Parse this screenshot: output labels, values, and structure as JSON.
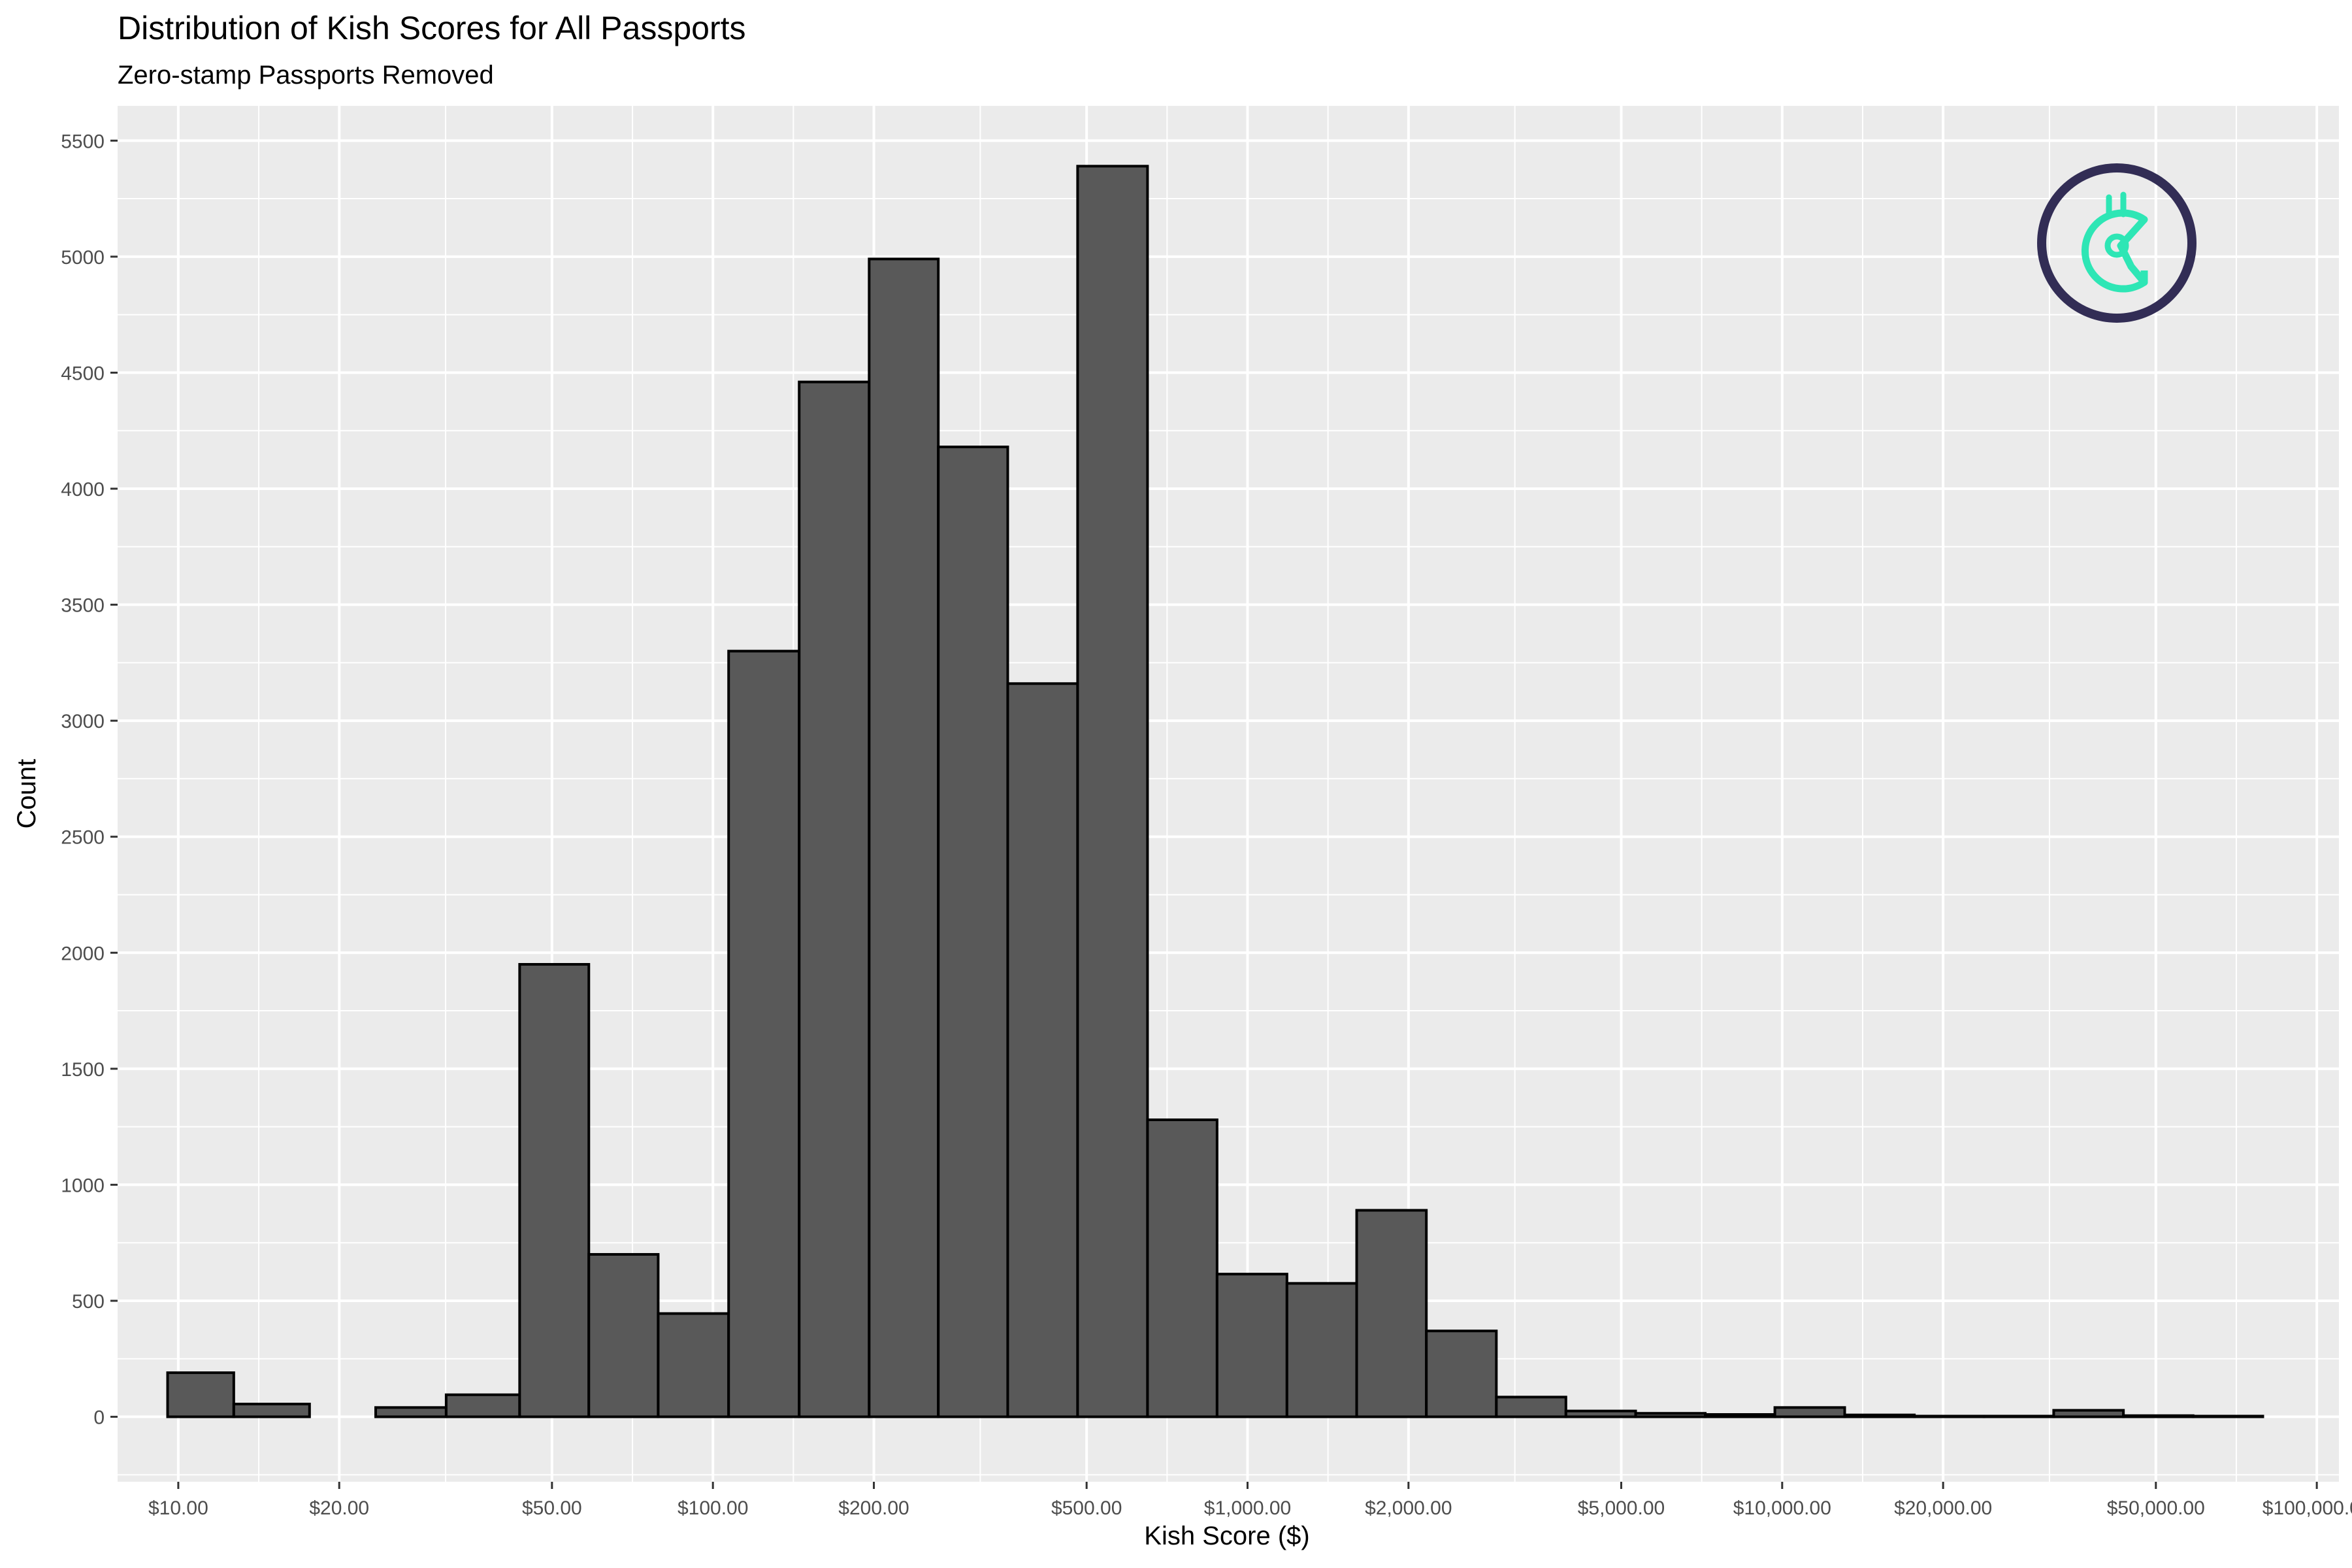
{
  "chart_data": {
    "type": "bar",
    "title": "Distribution of Kish Scores for All Passports",
    "subtitle": "Zero-stamp Passports Removed",
    "xlabel": "Kish Score ($)",
    "ylabel": "Count",
    "x_scale": "log10",
    "xlim": [
      7.7,
      110000
    ],
    "ylim": [
      -280,
      5650
    ],
    "x_ticks": [
      {
        "value": 10,
        "label": "$10.00"
      },
      {
        "value": 20,
        "label": "$20.00"
      },
      {
        "value": 50,
        "label": "$50.00"
      },
      {
        "value": 100,
        "label": "$100.00"
      },
      {
        "value": 200,
        "label": "$200.00"
      },
      {
        "value": 500,
        "label": "$500.00"
      },
      {
        "value": 1000,
        "label": "$1,000.00"
      },
      {
        "value": 2000,
        "label": "$2,000.00"
      },
      {
        "value": 5000,
        "label": "$5,000.00"
      },
      {
        "value": 10000,
        "label": "$10,000.00"
      },
      {
        "value": 20000,
        "label": "$20,000.00"
      },
      {
        "value": 50000,
        "label": "$50,000.00"
      },
      {
        "value": 100000,
        "label": "$100,000.00"
      }
    ],
    "y_ticks": [
      0,
      500,
      1000,
      1500,
      2000,
      2500,
      3000,
      3500,
      4000,
      4500,
      5000,
      5500
    ],
    "bins": [
      {
        "x0": 9.55,
        "x1": 12.7,
        "count": 190
      },
      {
        "x0": 12.7,
        "x1": 17.6,
        "count": 55
      },
      {
        "x0": 17.6,
        "x1": 23.4,
        "count": 0
      },
      {
        "x0": 23.4,
        "x1": 31.7,
        "count": 40
      },
      {
        "x0": 31.7,
        "x1": 43.5,
        "count": 95
      },
      {
        "x0": 43.5,
        "x1": 58.6,
        "count": 1950
      },
      {
        "x0": 58.6,
        "x1": 79.0,
        "count": 700
      },
      {
        "x0": 79.0,
        "x1": 107.0,
        "count": 445
      },
      {
        "x0": 107.0,
        "x1": 145.0,
        "count": 3300
      },
      {
        "x0": 145.0,
        "x1": 196.0,
        "count": 4460
      },
      {
        "x0": 196.0,
        "x1": 264.0,
        "count": 4990
      },
      {
        "x0": 264.0,
        "x1": 356.0,
        "count": 4180
      },
      {
        "x0": 356.0,
        "x1": 481.0,
        "count": 3160
      },
      {
        "x0": 481.0,
        "x1": 650.0,
        "count": 5390
      },
      {
        "x0": 650.0,
        "x1": 877.0,
        "count": 1280
      },
      {
        "x0": 877.0,
        "x1": 1185.0,
        "count": 615
      },
      {
        "x0": 1185.0,
        "x1": 1600.0,
        "count": 575
      },
      {
        "x0": 1600.0,
        "x1": 2160.0,
        "count": 890
      },
      {
        "x0": 2160.0,
        "x1": 2920.0,
        "count": 370
      },
      {
        "x0": 2920.0,
        "x1": 3940.0,
        "count": 85
      },
      {
        "x0": 3940.0,
        "x1": 5320.0,
        "count": 25
      },
      {
        "x0": 5320.0,
        "x1": 7180.0,
        "count": 15
      },
      {
        "x0": 7180.0,
        "x1": 9690.0,
        "count": 10
      },
      {
        "x0": 9690.0,
        "x1": 13090.0,
        "count": 40
      },
      {
        "x0": 13090.0,
        "x1": 17670.0,
        "count": 8
      },
      {
        "x0": 17670.0,
        "x1": 23850.0,
        "count": 3
      },
      {
        "x0": 23850.0,
        "x1": 32200.0,
        "count": 3
      },
      {
        "x0": 32200.0,
        "x1": 43480.0,
        "count": 28
      },
      {
        "x0": 43480.0,
        "x1": 58700.0,
        "count": 5
      },
      {
        "x0": 58700.0,
        "x1": 79250.0,
        "count": 3
      }
    ],
    "grid": true,
    "legend": "none",
    "colors": {
      "bar_fill": "#595959",
      "bar_stroke": "#000000",
      "panel_bg": "#ebebeb",
      "grid": "#ffffff",
      "logo_ring": "#322d55",
      "logo_mark": "#2ee6b5"
    }
  },
  "logo": {
    "icon": "gitcoin-logo-icon"
  }
}
